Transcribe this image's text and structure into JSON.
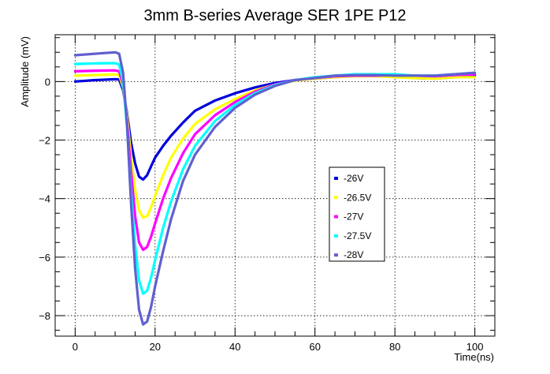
{
  "chart_data": {
    "type": "line",
    "title": "3mm B-series Average SER 1PE P12",
    "xlabel": "Time(ns)",
    "ylabel": "Amplitude (mV)",
    "xlim": [
      -5,
      105
    ],
    "ylim": [
      -8.7,
      1.6
    ],
    "xticks": [
      0,
      20,
      40,
      60,
      80,
      100
    ],
    "yticks": [
      -8,
      -6,
      -4,
      -2,
      0
    ],
    "xtick_labels": [
      "0",
      "20",
      "40",
      "60",
      "80",
      "100"
    ],
    "ytick_labels": [
      "−8",
      "−6",
      "−4",
      "−2",
      "0"
    ],
    "grid": true,
    "legend_position": "right-center",
    "series": [
      {
        "name": "-26V",
        "color": "#0000dd",
        "x": [
          0,
          5,
          10,
          11,
          12,
          13,
          14,
          15,
          16,
          17,
          18,
          19,
          20,
          22,
          24,
          27,
          30,
          35,
          40,
          45,
          50,
          55,
          60,
          65,
          70,
          75,
          80,
          85,
          90,
          95,
          100
        ],
        "y": [
          0.0,
          0.05,
          0.08,
          0.07,
          -0.3,
          -1.1,
          -2.1,
          -2.8,
          -3.25,
          -3.35,
          -3.2,
          -2.9,
          -2.6,
          -2.2,
          -1.85,
          -1.4,
          -1.0,
          -0.65,
          -0.4,
          -0.2,
          -0.05,
          0.05,
          0.1,
          0.15,
          0.2,
          0.2,
          0.18,
          0.12,
          0.1,
          0.15,
          0.2
        ]
      },
      {
        "name": "-26.5V",
        "color": "#ffff00",
        "x": [
          0,
          5,
          10,
          11,
          12,
          13,
          14,
          15,
          16,
          17,
          18,
          19,
          20,
          22,
          24,
          27,
          30,
          35,
          40,
          45,
          50,
          55,
          60,
          65,
          70,
          75,
          80,
          85,
          90,
          95,
          100
        ],
        "y": [
          0.2,
          0.22,
          0.24,
          0.22,
          -0.2,
          -1.2,
          -2.6,
          -3.7,
          -4.4,
          -4.65,
          -4.6,
          -4.3,
          -3.9,
          -3.2,
          -2.6,
          -1.95,
          -1.45,
          -0.95,
          -0.6,
          -0.3,
          -0.1,
          0.03,
          0.1,
          0.15,
          0.18,
          0.18,
          0.15,
          0.12,
          0.1,
          0.15,
          0.15
        ]
      },
      {
        "name": "-27V",
        "color": "#ff00ff",
        "x": [
          0,
          5,
          10,
          11,
          12,
          13,
          14,
          15,
          16,
          17,
          18,
          19,
          20,
          22,
          24,
          27,
          30,
          35,
          40,
          45,
          50,
          55,
          60,
          65,
          70,
          75,
          80,
          85,
          90,
          95,
          100
        ],
        "y": [
          0.35,
          0.37,
          0.38,
          0.35,
          -0.1,
          -1.4,
          -3.1,
          -4.6,
          -5.5,
          -5.75,
          -5.65,
          -5.3,
          -4.85,
          -4.0,
          -3.3,
          -2.45,
          -1.8,
          -1.15,
          -0.7,
          -0.35,
          -0.1,
          0.05,
          0.12,
          0.18,
          0.2,
          0.2,
          0.22,
          0.2,
          0.18,
          0.22,
          0.25
        ]
      },
      {
        "name": "-27.5V",
        "color": "#00ffff",
        "x": [
          0,
          5,
          10,
          11,
          12,
          13,
          14,
          15,
          16,
          17,
          18,
          19,
          20,
          22,
          24,
          27,
          30,
          35,
          40,
          45,
          50,
          55,
          60,
          65,
          70,
          75,
          80,
          85,
          90,
          95,
          100
        ],
        "y": [
          0.6,
          0.62,
          0.63,
          0.58,
          0.0,
          -1.6,
          -3.8,
          -5.6,
          -6.8,
          -7.25,
          -7.15,
          -6.7,
          -6.1,
          -5.0,
          -4.1,
          -3.0,
          -2.2,
          -1.35,
          -0.8,
          -0.4,
          -0.12,
          0.05,
          0.15,
          0.2,
          0.25,
          0.25,
          0.25,
          0.2,
          0.2,
          0.25,
          0.3
        ]
      },
      {
        "name": "-28V",
        "color": "#6060d0",
        "x": [
          0,
          5,
          10,
          11,
          12,
          13,
          14,
          15,
          16,
          17,
          18,
          19,
          20,
          22,
          24,
          27,
          30,
          35,
          40,
          45,
          50,
          55,
          60,
          65,
          70,
          75,
          80,
          85,
          90,
          95,
          100
        ],
        "y": [
          0.9,
          0.95,
          1.0,
          0.95,
          0.3,
          -1.5,
          -4.2,
          -6.4,
          -7.8,
          -8.3,
          -8.2,
          -7.7,
          -7.0,
          -5.8,
          -4.7,
          -3.4,
          -2.5,
          -1.55,
          -0.9,
          -0.45,
          -0.15,
          0.05,
          0.12,
          0.2,
          0.22,
          0.22,
          0.2,
          0.2,
          0.2,
          0.25,
          0.3
        ]
      }
    ]
  }
}
